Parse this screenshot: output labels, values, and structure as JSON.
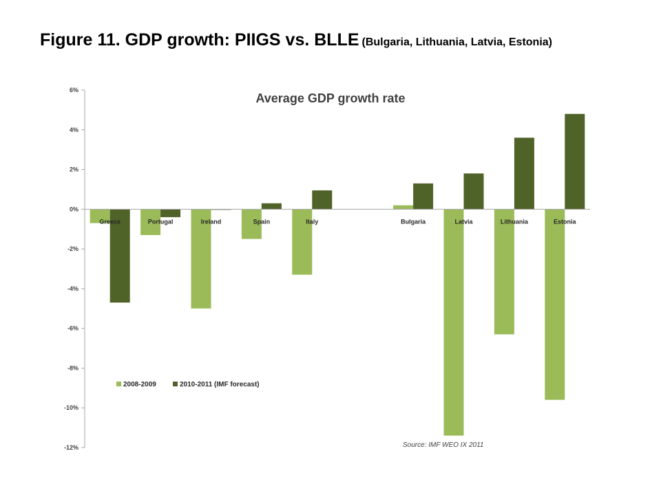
{
  "slide": {
    "title": "Figure 11. GDP growth: PIIGS vs. BLLE",
    "subtitle": "(Bulgaria, Lithuania, Latvia, Estonia)"
  },
  "chart_data": {
    "type": "bar",
    "title": "Average GDP growth rate",
    "categories": [
      "Greece",
      "Portugal",
      "Ireland",
      "Spain",
      "Italy",
      "",
      "Bulgaria",
      "Latvia",
      "Lithuania",
      "Estonia"
    ],
    "series": [
      {
        "name": "2008-2009",
        "color": "#9bbb59",
        "values": [
          -0.7,
          -1.3,
          -5.0,
          -1.5,
          -3.3,
          null,
          0.2,
          -11.4,
          -6.3,
          -9.6
        ]
      },
      {
        "name": "2010-2011 (IMF forecast)",
        "color": "#4f6228",
        "values": [
          -4.7,
          -0.4,
          0.0,
          0.3,
          0.95,
          null,
          1.3,
          1.8,
          3.6,
          4.8
        ]
      }
    ],
    "ylim": [
      -12,
      6
    ],
    "yticks": [
      "-12%",
      "-10%",
      "-8%",
      "-6%",
      "-4%",
      "-2%",
      "0%",
      "2%",
      "4%",
      "6%"
    ],
    "ytick_values": [
      -12,
      -10,
      -8,
      -6,
      -4,
      -2,
      0,
      2,
      4,
      6
    ],
    "xlabel": "",
    "ylabel": "",
    "legend_position": "bottom-left",
    "grid": false,
    "source_note": "Source: IMF WEO IX 2011"
  }
}
